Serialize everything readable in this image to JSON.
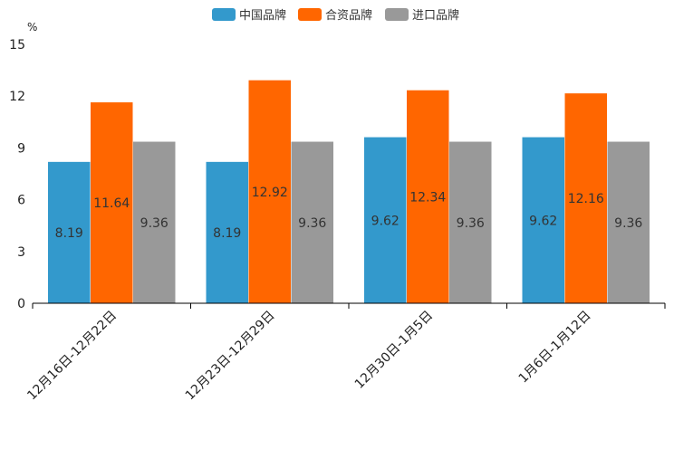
{
  "chart_data": {
    "type": "bar",
    "title": "",
    "xlabel": "",
    "ylabel": "%",
    "ylim": [
      0,
      15
    ],
    "yticks": [
      0,
      3,
      6,
      9,
      12,
      15
    ],
    "grid": false,
    "legend_position": "top-center",
    "categories": [
      "12月16日-12月22日",
      "12月23日-12月29日",
      "12月30日-1月5日",
      "1月6日-1月12日"
    ],
    "series": [
      {
        "name": "中国品牌",
        "color": "#3399cc",
        "values": [
          8.19,
          8.19,
          9.62,
          9.62
        ],
        "labels": [
          "8.19",
          "8.19",
          "9.62",
          "9.62"
        ]
      },
      {
        "name": "合资品牌",
        "color": "#ff6600",
        "values": [
          11.64,
          12.92,
          12.34,
          12.16
        ],
        "labels": [
          "11.64",
          "12.92",
          "12.34",
          "12.16"
        ]
      },
      {
        "name": "进口品牌",
        "color": "#999999",
        "values": [
          9.36,
          9.36,
          9.36,
          9.36
        ],
        "labels": [
          "9.36",
          "9.36",
          "9.36",
          "9.36"
        ]
      }
    ]
  }
}
